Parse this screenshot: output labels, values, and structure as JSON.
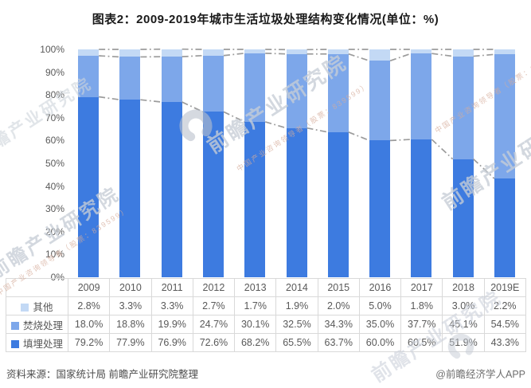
{
  "title": "图表2：2009-2019年城市生活垃圾处理结构变化情况(单位：%)",
  "chart_data": {
    "type": "bar",
    "stacked": true,
    "title": "图表2：2009-2019年城市生活垃圾处理结构变化情况(单位：%)",
    "unit": "%",
    "categories": [
      "2009",
      "2010",
      "2011",
      "2012",
      "2013",
      "2014",
      "2015",
      "2016",
      "2017",
      "2018",
      "2019E"
    ],
    "series": [
      {
        "name": "填埋处理",
        "key": "landfill",
        "color": "#3D7BE0",
        "values": [
          79.2,
          77.9,
          76.9,
          72.6,
          68.2,
          65.5,
          63.7,
          60.0,
          60.5,
          51.9,
          43.3
        ]
      },
      {
        "name": "焚烧处理",
        "key": "incineration",
        "color": "#7DA7EA",
        "values": [
          18.0,
          18.8,
          19.9,
          24.7,
          30.1,
          32.5,
          34.3,
          35.0,
          37.7,
          45.1,
          54.5
        ]
      },
      {
        "name": "其他",
        "key": "other",
        "color": "#C3D9F5",
        "values": [
          2.8,
          3.3,
          3.3,
          2.7,
          1.7,
          1.9,
          2.0,
          5.0,
          1.8,
          3.0,
          2.2
        ]
      }
    ],
    "ylim": [
      0,
      100
    ],
    "y_ticks": [
      "0%",
      "10%",
      "20%",
      "30%",
      "40%",
      "50%",
      "60%",
      "70%",
      "80%",
      "90%",
      "100%"
    ],
    "grid": false,
    "legend_position": "table-left",
    "series_lines": {
      "show": true,
      "color": "#9C9C9C",
      "style": "dash-dot"
    }
  },
  "table": {
    "corner": "",
    "columns": [
      "2009",
      "2010",
      "2011",
      "2012",
      "2013",
      "2014",
      "2015",
      "2016",
      "2017",
      "2018",
      "2019E"
    ],
    "rows": [
      {
        "label": "其他",
        "key": "other",
        "color": "#C3D9F5",
        "values": [
          "2.8%",
          "3.3%",
          "3.3%",
          "2.7%",
          "1.7%",
          "1.9%",
          "2.0%",
          "5.0%",
          "1.8%",
          "3.0%",
          "2.2%"
        ]
      },
      {
        "label": "焚烧处理",
        "key": "incineration",
        "color": "#7DA7EA",
        "values": [
          "18.0%",
          "18.8%",
          "19.9%",
          "24.7%",
          "30.1%",
          "32.5%",
          "34.3%",
          "35.0%",
          "37.7%",
          "45.1%",
          "54.5%"
        ]
      },
      {
        "label": "填埋处理",
        "key": "landfill",
        "color": "#3D7BE0",
        "values": [
          "79.2%",
          "77.9%",
          "76.9%",
          "72.6%",
          "68.2%",
          "65.5%",
          "63.7%",
          "60.0%",
          "60.5%",
          "51.9%",
          "43.3%"
        ]
      }
    ]
  },
  "footer": {
    "source": "资料来源：国家统计局 前瞻产业研究院整理",
    "credit": "@前瞻经济学人APP"
  },
  "watermark": {
    "brand": "前瞻产业研究院",
    "tagline": "中国产业咨询领导者（股票：839599）"
  }
}
